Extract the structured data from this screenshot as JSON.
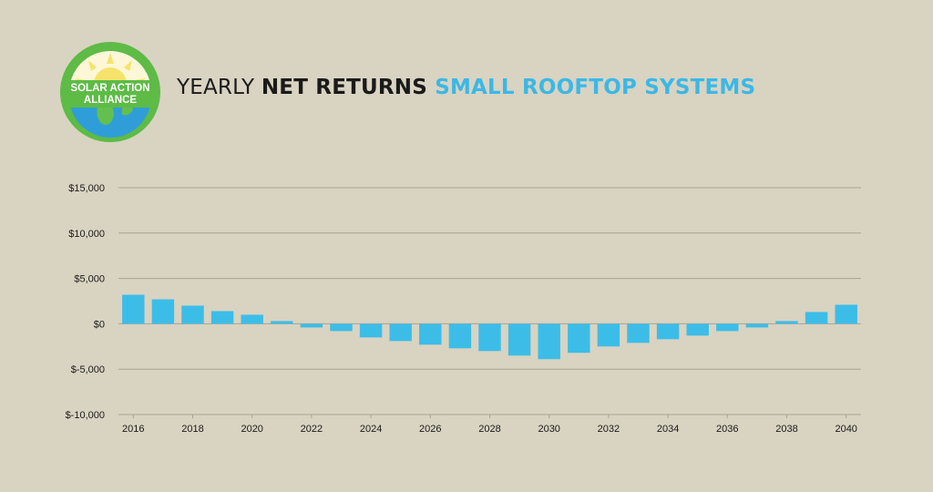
{
  "logo": {
    "text_line1": "SOLAR ACTION",
    "text_line2": "ALLIANCE",
    "ring_color": "#5dbb46",
    "sun_color": "#f5e36b",
    "globe_color": "#2f9ed8"
  },
  "title": {
    "part1": "YEARLY ",
    "part2": "NET RETURNS",
    "part3": " SMALL ROOFTOP SYSTEMS"
  },
  "colors": {
    "background": "#d9d3c1",
    "bar": "#3cbde8",
    "grid": "#a9a391",
    "accent": "#3bb8e6"
  },
  "chart_data": {
    "type": "bar",
    "title": "YEARLY NET RETURNS SMALL ROOFTOP SYSTEMS",
    "xlabel": "",
    "ylabel": "",
    "ylim": [
      -10000,
      15000
    ],
    "yticks": [
      15000,
      10000,
      5000,
      0,
      -5000,
      -10000
    ],
    "ytick_labels": [
      "$15,000",
      "$10,000",
      "$5,000",
      "$0",
      "$-5,000",
      "$-10,000"
    ],
    "grid": true,
    "categories": [
      2016,
      2017,
      2018,
      2019,
      2020,
      2021,
      2022,
      2023,
      2024,
      2025,
      2026,
      2027,
      2028,
      2029,
      2030,
      2031,
      2032,
      2033,
      2034,
      2035,
      2036,
      2037,
      2038,
      2039,
      2040
    ],
    "xtick_labels": [
      "2016",
      "2018",
      "2020",
      "2022",
      "2024",
      "2026",
      "2028",
      "2030",
      "2032",
      "2034",
      "2036",
      "2038",
      "2040"
    ],
    "values": [
      3200,
      2700,
      2000,
      1400,
      1000,
      300,
      -400,
      -800,
      -1500,
      -1900,
      -2300,
      -2700,
      -3000,
      -3500,
      -3900,
      -3200,
      -2500,
      -2100,
      -1700,
      -1300,
      -800,
      -400,
      300,
      1300,
      2100
    ]
  }
}
